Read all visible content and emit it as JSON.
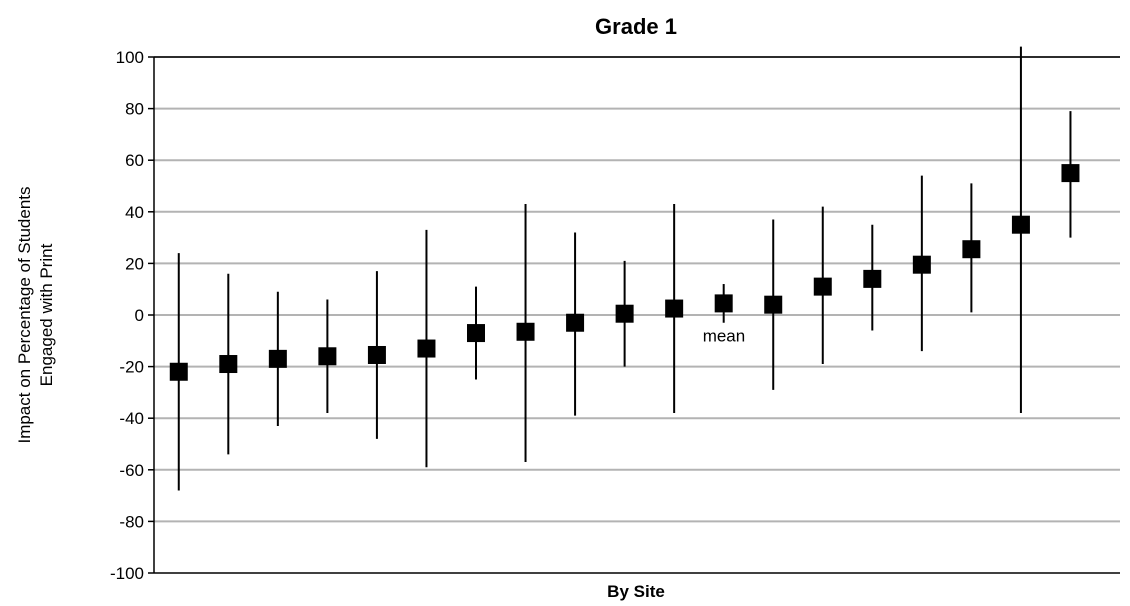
{
  "chart_data": {
    "type": "scatter",
    "title": "Grade 1",
    "xlabel": "By Site",
    "ylabel_lines": [
      "Impact on Percentage of Students",
      "Engaged with Print"
    ],
    "ylim": [
      -100,
      100
    ],
    "yticks": [
      100,
      80,
      60,
      40,
      20,
      0,
      -20,
      -40,
      -60,
      -80,
      -100
    ],
    "grid": true,
    "annotation": {
      "text": "mean"
    },
    "points": [
      {
        "y": -22,
        "low": -68,
        "high": 24
      },
      {
        "y": -19,
        "low": -54,
        "high": 16
      },
      {
        "y": -17,
        "low": -43,
        "high": 9
      },
      {
        "y": -16,
        "low": -38,
        "high": 6
      },
      {
        "y": -15.5,
        "low": -48,
        "high": 17
      },
      {
        "y": -13,
        "low": -59,
        "high": 33
      },
      {
        "y": -7,
        "low": -25,
        "high": 11
      },
      {
        "y": -6.5,
        "low": -57,
        "high": 43
      },
      {
        "y": -3,
        "low": -39,
        "high": 32
      },
      {
        "y": 0.5,
        "low": -20,
        "high": 21
      },
      {
        "y": 2.5,
        "low": -38,
        "high": 43
      },
      {
        "y": 4.5,
        "low": -3,
        "high": 12
      },
      {
        "y": 4,
        "low": -29,
        "high": 37
      },
      {
        "y": 11,
        "low": -19,
        "high": 42
      },
      {
        "y": 14,
        "low": -6,
        "high": 35
      },
      {
        "y": 19.5,
        "low": -14,
        "high": 54
      },
      {
        "y": 25.5,
        "low": 1,
        "high": 51
      },
      {
        "y": 35,
        "low": -38,
        "high": 104
      },
      {
        "y": 55,
        "low": 30,
        "high": 79
      }
    ],
    "colors": {
      "marker": "#000000",
      "grid": "#b3b3b3",
      "axis": "#000000"
    }
  }
}
